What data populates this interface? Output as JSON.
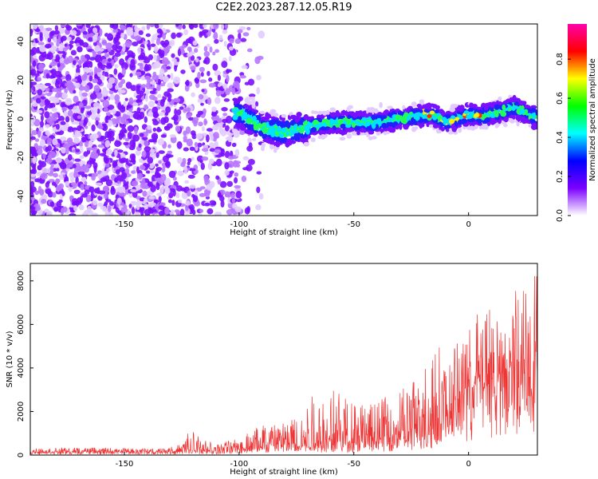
{
  "title": "C2E2.2023.287.12.05.R19",
  "chart_data": [
    {
      "type": "heatmap",
      "title": "C2E2.2023.287.12.05.R19",
      "xlabel": "Height of straight line (km)",
      "ylabel": "Frequency (Hz)",
      "xlim": [
        -191,
        30
      ],
      "ylim": [
        -50,
        49
      ],
      "xticks": [
        -150,
        -100,
        -50,
        0
      ],
      "yticks": [
        -40,
        -20,
        0,
        20,
        40
      ],
      "colorbar": {
        "label": "Normalized spectral amplitude",
        "range": [
          0,
          0.98
        ],
        "ticks": [
          0.0,
          0.2,
          0.4,
          0.6,
          0.8
        ],
        "colors": [
          "#ffffff",
          "#7b00ff",
          "#0000ff",
          "#00ffff",
          "#00ff00",
          "#ffff00",
          "#ff0000",
          "#ff00aa"
        ]
      },
      "ridge": {
        "x": [
          -100,
          -90,
          -80,
          -70,
          -60,
          -50,
          -40,
          -30,
          -20,
          -15,
          -10,
          -5,
          0,
          5,
          10,
          15,
          20,
          25,
          30
        ],
        "y": [
          3,
          -5,
          -7,
          -4,
          -2,
          -2,
          -2,
          0,
          2,
          2,
          -2,
          0,
          2,
          1,
          3,
          4,
          6,
          3,
          0
        ]
      },
      "noise_region_upper_x": -100
    },
    {
      "type": "line",
      "xlabel": "Height of straight line (km)",
      "ylabel": "SNR (10 * v/v)",
      "xlim": [
        -191,
        30
      ],
      "ylim": [
        0,
        8800
      ],
      "xticks": [
        -150,
        -100,
        -50,
        0
      ],
      "yticks": [
        0,
        2000,
        4000,
        6000,
        8000
      ],
      "color": "#ee3333",
      "envelope": {
        "x": [
          -191,
          -170,
          -150,
          -135,
          -125,
          -122,
          -110,
          -100,
          -90,
          -80,
          -70,
          -60,
          -50,
          -40,
          -30,
          -20,
          -15,
          -10,
          0,
          5,
          10,
          15,
          20,
          25,
          30
        ],
        "y": [
          350,
          350,
          320,
          300,
          500,
          1200,
          500,
          900,
          1500,
          1700,
          2600,
          3200,
          2500,
          2500,
          3000,
          3800,
          5900,
          4500,
          5800,
          7300,
          6900,
          5600,
          8500,
          7800,
          8700
        ]
      },
      "baseline": {
        "x": [
          -191,
          -150,
          -130,
          -110,
          -100,
          -80,
          -60,
          -40,
          -20,
          -10,
          0,
          10,
          20,
          30
        ],
        "y": [
          150,
          150,
          150,
          200,
          300,
          500,
          600,
          700,
          1100,
          1800,
          3200,
          3500,
          4000,
          4200
        ]
      }
    }
  ]
}
